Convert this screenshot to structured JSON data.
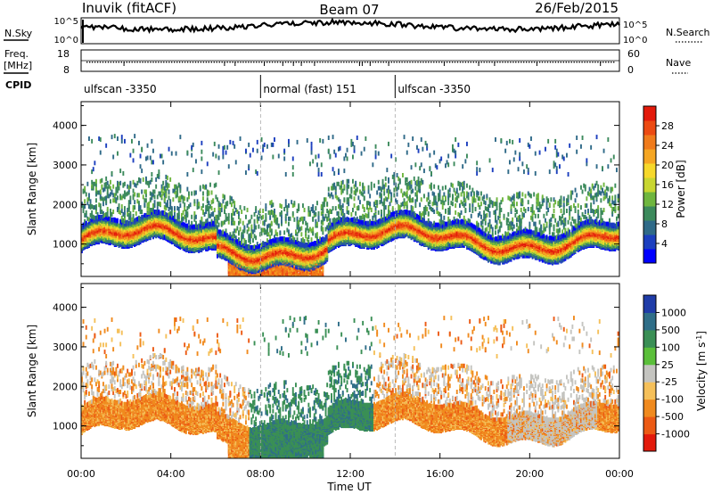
{
  "header": {
    "station": "Inuvik (fitACF)",
    "beam": "Beam 07",
    "date": "26/Feb/2015"
  },
  "noise_panel": {
    "left_label": "N.Sky",
    "right_label": "N.Search",
    "ticks_left": [
      "10^5",
      "10^0"
    ],
    "ticks_right": [
      "10^5",
      "10^0"
    ]
  },
  "freq_panel": {
    "left_label_top": "Freq.",
    "left_label_bottom": "[MHz]",
    "right_label": "Nave",
    "ticks_left": [
      "18",
      "8"
    ],
    "ticks_right": [
      "60",
      "0"
    ]
  },
  "cpid_panel": {
    "label": "CPID",
    "segments": [
      {
        "name": "ulfscan -3350",
        "start_h": 0,
        "end_h": 8
      },
      {
        "name": "normal (fast) 151",
        "start_h": 8,
        "end_h": 14
      },
      {
        "name": "ulfscan -3350",
        "start_h": 14,
        "end_h": 24
      }
    ]
  },
  "chart_data": [
    {
      "type": "heatmap",
      "title": "",
      "quantity": "Power",
      "xlabel": "Time UT",
      "ylabel": "Slant Range [km]",
      "xlim_hours": [
        0,
        24
      ],
      "ylim": [
        180,
        4600
      ],
      "y_ticks": [
        1000,
        2000,
        3000,
        4000
      ],
      "x_ticks": [
        "00:00",
        "04:00",
        "08:00",
        "12:00",
        "16:00",
        "20:00",
        "00:00"
      ],
      "colorbar": {
        "label": "Power [dB]",
        "ticks": [
          "4",
          "8",
          "12",
          "16",
          "20",
          "24",
          "28"
        ],
        "colors": [
          "#0000ff",
          "#1c3fbf",
          "#2f6a88",
          "#3c8a5c",
          "#6fb63f",
          "#c8d631",
          "#f6d82b",
          "#f5a623",
          "#f07b1c",
          "#ec4a12",
          "#e31a0b"
        ]
      },
      "features": [
        {
          "desc": "main echo band",
          "time_h": [
            0,
            24
          ],
          "range_km": [
            800,
            1600
          ],
          "power_db": [
            12,
            28
          ]
        },
        {
          "desc": "near-range echoes",
          "time_h": [
            6,
            11
          ],
          "range_km": [
            300,
            700
          ],
          "power_db": [
            16,
            28
          ]
        }
      ]
    },
    {
      "type": "heatmap",
      "title": "",
      "quantity": "Velocity",
      "xlabel": "Time UT",
      "ylabel": "Slant Range [km]",
      "xlim_hours": [
        0,
        24
      ],
      "ylim": [
        180,
        4600
      ],
      "y_ticks": [
        1000,
        2000,
        3000,
        4000
      ],
      "x_ticks": [
        "00:00",
        "04:00",
        "08:00",
        "12:00",
        "16:00",
        "20:00",
        "00:00"
      ],
      "colorbar": {
        "label": "Velocity [m s^-1]",
        "ticks": [
          "1000",
          "500",
          "100",
          "25",
          "-25",
          "-100",
          "-500",
          "-1000"
        ],
        "colors": [
          "#1f3ca8",
          "#2f6e88",
          "#3a8f55",
          "#5bbf3a",
          "#c4c4c0",
          "#f5c05a",
          "#f08a1e",
          "#ec5a14",
          "#e31a0b"
        ]
      },
      "features": [
        {
          "desc": "negative velocities along main band",
          "time_h": [
            0,
            8
          ],
          "range_km": [
            800,
            1600
          ],
          "velocity_ms": [
            -500,
            -100
          ]
        },
        {
          "desc": "positive velocities",
          "time_h": [
            7.5,
            13
          ],
          "range_km": [
            300,
            2200
          ],
          "velocity_ms": [
            100,
            500
          ]
        },
        {
          "desc": "ground scatter",
          "time_h": [
            19,
            23
          ],
          "range_km": [
            1000,
            2000
          ],
          "velocity_ms": [
            -25,
            25
          ]
        }
      ]
    }
  ]
}
